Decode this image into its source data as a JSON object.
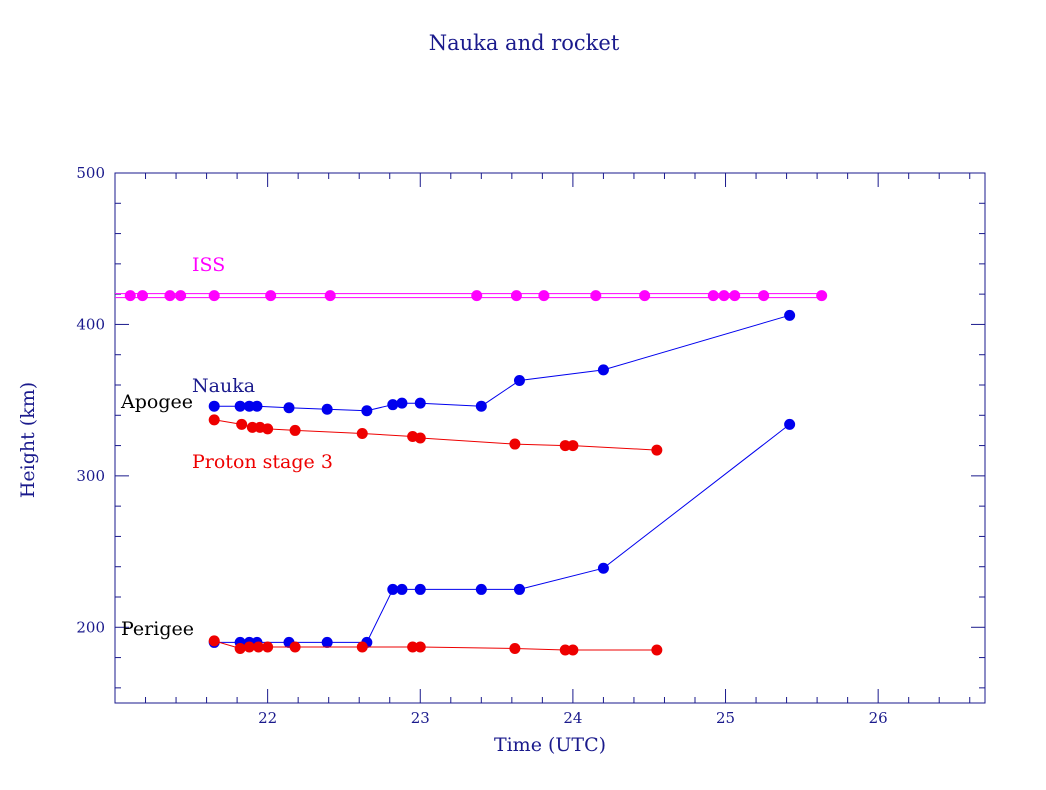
{
  "chart_data": {
    "type": "line",
    "title": "Nauka and rocket",
    "xlabel": "Time (UTC)",
    "ylabel": "Height (km)",
    "xlim": [
      21.0,
      26.7
    ],
    "ylim": [
      150,
      500
    ],
    "xticks": [
      22,
      23,
      24,
      25,
      26
    ],
    "yticks": [
      200,
      300,
      400,
      500
    ],
    "grid": false,
    "annotations": {
      "iss": "ISS",
      "nauka": "Nauka",
      "proton": "Proton stage 3",
      "apogee": "Apogee",
      "perigee": "Perigee"
    },
    "colors": {
      "axis": "#1a1a8c",
      "iss": "#ff00ff",
      "nauka": "#0000ee",
      "proton": "#ee0000",
      "text": "#000000"
    },
    "iss_x": [
      21.1,
      21.18,
      21.36,
      21.43,
      21.65,
      22.02,
      22.41,
      23.37,
      23.63,
      23.81,
      24.15,
      24.47,
      24.92,
      24.99,
      25.06,
      25.25,
      25.63
    ],
    "iss_values": [
      419,
      419,
      419,
      419,
      419,
      419,
      419,
      419,
      419,
      419,
      419,
      419,
      419,
      419,
      419,
      419,
      419
    ],
    "series": [
      {
        "name": "Nauka apogee",
        "color": "nauka",
        "x": [
          21.65,
          21.82,
          21.88,
          21.93,
          22.14,
          22.39,
          22.65,
          22.82,
          22.88,
          23.0,
          23.4,
          23.65,
          24.2,
          25.42
        ],
        "values": [
          346,
          346,
          346,
          346,
          345,
          344,
          343,
          347,
          348,
          348,
          346,
          363,
          370,
          406
        ]
      },
      {
        "name": "Nauka perigee",
        "color": "nauka",
        "x": [
          21.65,
          21.82,
          21.88,
          21.93,
          22.14,
          22.39,
          22.65,
          22.82,
          22.88,
          23.0,
          23.4,
          23.65,
          24.2,
          25.42
        ],
        "values": [
          190,
          190,
          190,
          190,
          190,
          190,
          190,
          225,
          225,
          225,
          225,
          225,
          239,
          334
        ]
      },
      {
        "name": "Proton stage 3 apogee",
        "color": "proton",
        "x": [
          21.65,
          21.83,
          21.9,
          21.95,
          22.0,
          22.18,
          22.62,
          22.95,
          23.0,
          23.62,
          23.95,
          24.0,
          24.55
        ],
        "values": [
          337,
          334,
          332,
          332,
          331,
          330,
          328,
          326,
          325,
          321,
          320,
          320,
          317
        ]
      },
      {
        "name": "Proton stage 3 perigee",
        "color": "proton",
        "x": [
          21.65,
          21.82,
          21.88,
          21.94,
          22.0,
          22.18,
          22.62,
          22.95,
          23.0,
          23.62,
          23.95,
          24.0,
          24.55
        ],
        "values": [
          191,
          186,
          187,
          187,
          187,
          187,
          187,
          187,
          187,
          186,
          185,
          185,
          185
        ]
      }
    ]
  }
}
